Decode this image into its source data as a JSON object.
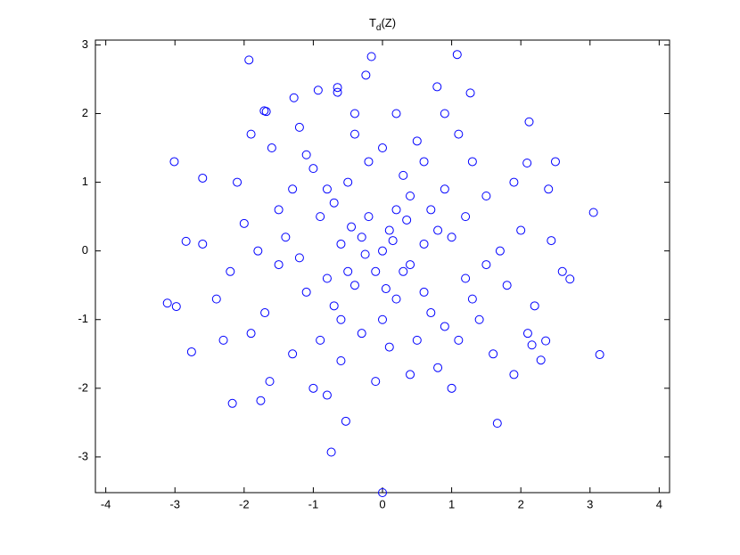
{
  "chart_data": {
    "type": "scatter",
    "title": {
      "main": "T",
      "sub": "d",
      "tail": "(Z)"
    },
    "xlim": [
      -4.15,
      4.15
    ],
    "ylim": [
      -3.52,
      3.07
    ],
    "xticks": [
      -4,
      -3,
      -2,
      -1,
      0,
      1,
      2,
      3,
      4
    ],
    "yticks": [
      -3,
      -2,
      -1,
      0,
      1,
      2,
      3
    ],
    "marker": "circle",
    "x": [
      -3.01,
      -1.93,
      -3.11,
      -2.98,
      -2.76,
      -2.84,
      -2.6,
      -2.17,
      -0.74,
      0.0,
      -0.53,
      1.66,
      3.14,
      3.05,
      2.71,
      2.44,
      2.09,
      1.08,
      -0.16,
      0.79,
      -0.24,
      -0.93,
      -0.65,
      -0.65,
      -1.28,
      -1.71,
      -1.68,
      2.12,
      1.27,
      2.29,
      2.36,
      2.16,
      -1.76,
      -1.63,
      0.1,
      -0.2,
      0.4,
      -0.5,
      0.7,
      -0.8,
      1.2,
      -1.1,
      0.3,
      -0.3,
      1.5,
      -1.4,
      0.9,
      -0.9,
      0.2,
      -0.6,
      1.0,
      -1.0,
      0.5,
      -0.4,
      1.8,
      -1.7,
      0.0,
      0.6,
      -0.7,
      1.3,
      -1.3,
      2.0,
      -2.0,
      0.8,
      -0.1,
      0.2,
      -1.6,
      1.6,
      2.2,
      -2.2,
      0.4,
      -0.4,
      0.9,
      -0.9,
      1.4,
      -1.5,
      0.1,
      -0.2,
      0.6,
      -0.6,
      1.1,
      -1.2,
      1.9,
      -1.9,
      0.3,
      -0.3,
      0.7,
      -0.7,
      1.2,
      -1.2,
      0.5,
      -0.5,
      1.7,
      -1.8,
      0.0,
      0.0,
      2.4,
      -2.4,
      1.0,
      -1.0,
      0.2,
      -0.1,
      0.8,
      -0.8,
      1.5,
      -1.5,
      0.4,
      -0.4,
      2.1,
      -2.1,
      0.6,
      -0.6,
      1.3,
      -1.3,
      0.15,
      -0.25,
      0.35,
      -0.45,
      0.05,
      2.6,
      -2.6,
      1.1,
      -1.1,
      0.9,
      -0.8,
      1.9,
      -1.9,
      2.5,
      -2.3
    ],
    "series": [
      {
        "color": "#0000ff",
        "values": [
          1.3,
          2.78,
          -0.76,
          -0.81,
          -1.47,
          0.14,
          1.06,
          -2.22,
          -2.93,
          -3.52,
          -2.48,
          -2.51,
          -1.51,
          0.56,
          -0.41,
          0.15,
          1.28,
          2.86,
          2.83,
          2.39,
          2.56,
          2.34,
          2.38,
          2.31,
          2.23,
          2.04,
          2.03,
          1.88,
          2.3,
          -1.59,
          -1.31,
          -1.37,
          -2.18,
          -1.9,
          0.3,
          0.5,
          -0.2,
          -0.3,
          0.6,
          0.9,
          -0.4,
          -0.6,
          1.1,
          -1.2,
          0.8,
          0.2,
          -1.1,
          -1.3,
          -0.7,
          0.1,
          0.2,
          1.2,
          1.6,
          1.7,
          -0.5,
          -0.9,
          0.0,
          -0.6,
          -0.8,
          1.3,
          -1.5,
          0.3,
          0.4,
          -1.7,
          -1.9,
          2.0,
          1.5,
          -1.5,
          -0.8,
          -0.3,
          0.8,
          -0.5,
          0.9,
          0.5,
          -1.0,
          -0.2,
          -1.4,
          1.3,
          0.1,
          -1.0,
          1.7,
          1.8,
          1.0,
          -1.2,
          -0.3,
          0.2,
          -0.9,
          0.7,
          0.5,
          -0.1,
          -1.3,
          1.0,
          0.0,
          0.0,
          1.5,
          -1.0,
          0.9,
          -0.7,
          -2.0,
          -2.0,
          0.6,
          -0.3,
          0.3,
          -0.4,
          -0.2,
          0.6,
          -1.8,
          2.0,
          -1.2,
          1.0,
          1.3,
          -1.6,
          -0.7,
          0.9,
          0.15,
          -0.05,
          0.45,
          0.35,
          -0.55,
          -0.3,
          0.1,
          -1.3,
          1.4,
          2.0,
          -2.1,
          -1.8,
          1.7,
          1.3,
          -1.3
        ]
      }
    ]
  }
}
